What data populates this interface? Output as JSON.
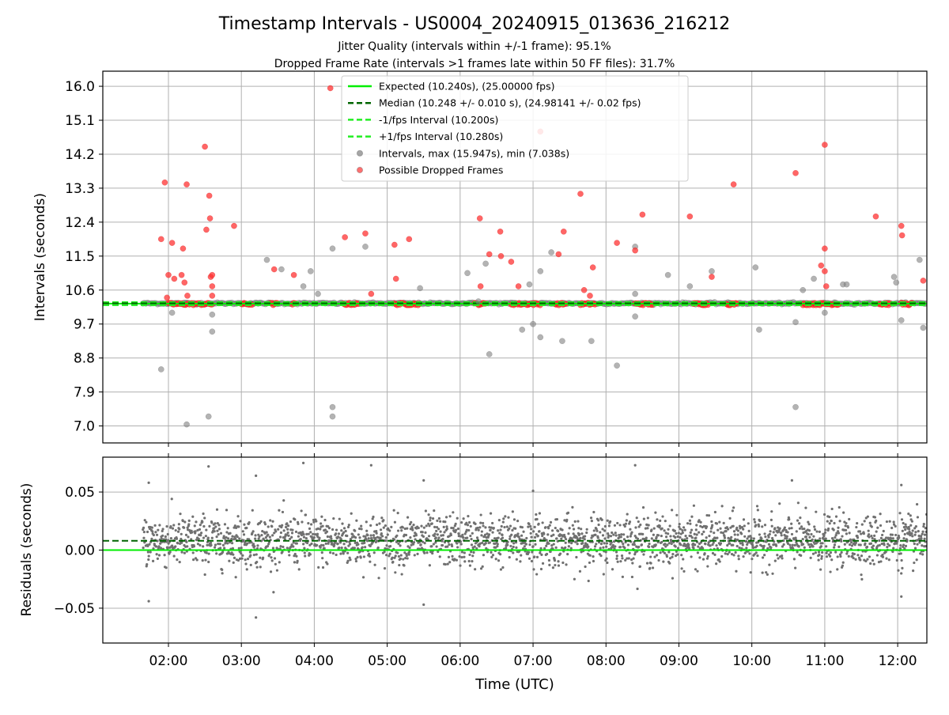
{
  "figure": {
    "title": "Timestamp Intervals - US0004_20240915_013636_216212",
    "subtitle1": "Jitter Quality (intervals within +/-1 frame): 95.1%",
    "subtitle2": "Dropped Frame Rate (intervals >1 frames late within 50 FF files): 31.7%"
  },
  "colors": {
    "expected": "#00ee00",
    "median": "#006400",
    "interval_band": "#22ee22",
    "intervals": "#808080",
    "dropped": "#ff3333",
    "residuals": "#707070",
    "grid": "#b0b0b0"
  },
  "chart_data": [
    {
      "type": "scatter",
      "panel": "intervals",
      "ylabel": "Intervals (seconds)",
      "ylim": [
        6.55,
        16.4
      ],
      "yticks": [
        "16.0",
        "15.1",
        "14.2",
        "13.3",
        "12.4",
        "11.5",
        "10.6",
        "9.7",
        "8.8",
        "7.9",
        "7.0"
      ],
      "ytick_values": [
        16.0,
        15.1,
        14.2,
        13.3,
        12.4,
        11.5,
        10.6,
        9.7,
        8.8,
        7.9,
        7.0
      ],
      "xlim_hours": [
        1.1,
        12.4
      ],
      "xtick_hours": [
        2,
        3,
        4,
        5,
        6,
        7,
        8,
        9,
        10,
        11,
        12
      ],
      "grid": true,
      "legend_position": "top-center",
      "legend": [
        {
          "label": "Expected (10.240s), (25.00000 fps)",
          "kind": "line",
          "style": "solid",
          "color_key": "expected"
        },
        {
          "label": "Median (10.248 +/- 0.010 s), (24.98141 +/- 0.02 fps)",
          "kind": "line",
          "style": "dashed",
          "color_key": "median"
        },
        {
          "label": "-1/fps Interval (10.200s)",
          "kind": "line",
          "style": "dashed",
          "color_key": "interval_band"
        },
        {
          "label": "+1/fps Interval (10.280s)",
          "kind": "line",
          "style": "dashed",
          "color_key": "interval_band"
        },
        {
          "label": "Intervals, max (15.947s), min (7.038s)",
          "kind": "marker",
          "color_key": "intervals"
        },
        {
          "label": "Possible Dropped Frames",
          "kind": "marker",
          "color_key": "dropped"
        }
      ],
      "reference_lines": {
        "expected": 10.24,
        "median": 10.248,
        "minus_fps": 10.2,
        "plus_fps": 10.28
      },
      "baseline_span_hours": [
        1.65,
        12.4
      ],
      "outliers_gray": [
        [
          1.9,
          8.5
        ],
        [
          2.05,
          10.0
        ],
        [
          2.25,
          7.04
        ],
        [
          2.55,
          7.25
        ],
        [
          2.6,
          9.95
        ],
        [
          2.6,
          9.5
        ],
        [
          3.35,
          11.4
        ],
        [
          3.55,
          11.15
        ],
        [
          3.95,
          11.1
        ],
        [
          3.85,
          10.7
        ],
        [
          4.05,
          10.5
        ],
        [
          4.25,
          11.7
        ],
        [
          4.25,
          7.5
        ],
        [
          4.25,
          7.25
        ],
        [
          4.7,
          11.75
        ],
        [
          5.45,
          10.65
        ],
        [
          6.1,
          11.05
        ],
        [
          6.25,
          10.3
        ],
        [
          6.35,
          11.3
        ],
        [
          6.4,
          8.9
        ],
        [
          6.85,
          9.55
        ],
        [
          6.95,
          10.75
        ],
        [
          7.0,
          9.7
        ],
        [
          7.1,
          11.1
        ],
        [
          7.1,
          9.35
        ],
        [
          7.25,
          11.6
        ],
        [
          7.4,
          9.25
        ],
        [
          7.8,
          9.25
        ],
        [
          8.15,
          8.6
        ],
        [
          8.4,
          11.75
        ],
        [
          8.4,
          10.5
        ],
        [
          8.4,
          9.9
        ],
        [
          8.85,
          11.0
        ],
        [
          9.15,
          10.7
        ],
        [
          9.45,
          11.1
        ],
        [
          10.05,
          11.2
        ],
        [
          10.1,
          9.55
        ],
        [
          10.6,
          9.75
        ],
        [
          10.6,
          7.5
        ],
        [
          10.7,
          10.6
        ],
        [
          10.85,
          10.9
        ],
        [
          11.0,
          10.0
        ],
        [
          11.25,
          10.75
        ],
        [
          11.3,
          10.75
        ],
        [
          11.95,
          10.95
        ],
        [
          11.98,
          10.8
        ],
        [
          12.05,
          9.8
        ],
        [
          12.3,
          11.4
        ],
        [
          12.35,
          9.6
        ]
      ],
      "dropped_frames": [
        [
          1.9,
          11.95
        ],
        [
          1.95,
          13.45
        ],
        [
          1.98,
          10.4
        ],
        [
          2.0,
          11.0
        ],
        [
          2.05,
          11.85
        ],
        [
          2.08,
          10.9
        ],
        [
          2.18,
          11.0
        ],
        [
          2.2,
          11.7
        ],
        [
          2.22,
          10.8
        ],
        [
          2.25,
          13.4
        ],
        [
          2.26,
          10.45
        ],
        [
          2.5,
          14.4
        ],
        [
          2.52,
          12.2
        ],
        [
          2.56,
          13.1
        ],
        [
          2.57,
          12.5
        ],
        [
          2.58,
          10.95
        ],
        [
          2.6,
          11.0
        ],
        [
          2.6,
          10.7
        ],
        [
          2.6,
          10.45
        ],
        [
          2.9,
          12.3
        ],
        [
          3.45,
          11.15
        ],
        [
          3.72,
          11.0
        ],
        [
          4.22,
          15.95
        ],
        [
          4.42,
          12.0
        ],
        [
          4.7,
          12.1
        ],
        [
          4.78,
          10.5
        ],
        [
          5.1,
          11.8
        ],
        [
          5.12,
          10.9
        ],
        [
          5.3,
          11.95
        ],
        [
          6.27,
          12.5
        ],
        [
          6.28,
          10.7
        ],
        [
          6.4,
          11.55
        ],
        [
          6.55,
          12.15
        ],
        [
          6.56,
          11.5
        ],
        [
          6.7,
          11.35
        ],
        [
          6.8,
          10.7
        ],
        [
          7.1,
          14.8
        ],
        [
          7.35,
          11.55
        ],
        [
          7.42,
          12.15
        ],
        [
          7.65,
          13.15
        ],
        [
          7.7,
          10.6
        ],
        [
          7.78,
          10.45
        ],
        [
          7.82,
          11.2
        ],
        [
          8.15,
          11.85
        ],
        [
          8.4,
          11.65
        ],
        [
          8.5,
          12.6
        ],
        [
          9.15,
          12.55
        ],
        [
          9.45,
          10.95
        ],
        [
          9.75,
          13.4
        ],
        [
          10.6,
          13.7
        ],
        [
          10.95,
          11.25
        ],
        [
          11.0,
          11.7
        ],
        [
          11.0,
          11.1
        ],
        [
          11.02,
          10.7
        ],
        [
          11.0,
          14.45
        ],
        [
          11.7,
          12.55
        ],
        [
          12.05,
          12.3
        ],
        [
          12.06,
          12.05
        ],
        [
          12.35,
          10.85
        ]
      ]
    },
    {
      "type": "scatter",
      "panel": "residuals",
      "ylabel": "Residuals (seconds)",
      "xlabel": "Time (UTC)",
      "ylim": [
        -0.08,
        0.08
      ],
      "yticks": [
        "0.05",
        "0.00",
        "−0.05"
      ],
      "ytick_values": [
        0.05,
        0.0,
        -0.05
      ],
      "xlim_hours": [
        1.1,
        12.4
      ],
      "xtick_hours": [
        2,
        3,
        4,
        5,
        6,
        7,
        8,
        9,
        10,
        11,
        12
      ],
      "xticks": [
        "02:00",
        "03:00",
        "04:00",
        "05:00",
        "06:00",
        "07:00",
        "08:00",
        "09:00",
        "10:00",
        "11:00",
        "12:00"
      ],
      "grid": true,
      "zero_line": 0.0,
      "median_line": 0.008,
      "residual_mean": 0.008,
      "residual_std": 0.011,
      "outliers": [
        [
          1.73,
          0.058
        ],
        [
          1.73,
          -0.044
        ],
        [
          2.55,
          0.072
        ],
        [
          3.2,
          0.064
        ],
        [
          3.85,
          0.075
        ],
        [
          4.78,
          0.073
        ],
        [
          5.5,
          0.06
        ],
        [
          3.2,
          -0.058
        ],
        [
          5.5,
          -0.047
        ],
        [
          7.0,
          0.051
        ],
        [
          8.4,
          0.073
        ],
        [
          10.55,
          0.06
        ],
        [
          12.05,
          0.056
        ],
        [
          12.05,
          -0.04
        ]
      ]
    }
  ]
}
